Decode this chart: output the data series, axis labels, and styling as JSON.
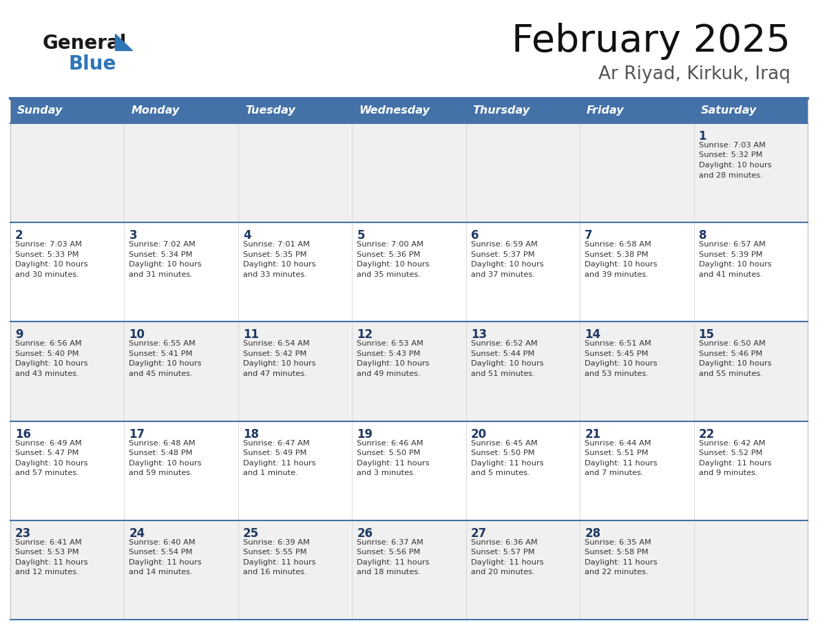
{
  "title": "February 2025",
  "subtitle": "Ar Riyad, Kirkuk, Iraq",
  "days_of_week": [
    "Sunday",
    "Monday",
    "Tuesday",
    "Wednesday",
    "Thursday",
    "Friday",
    "Saturday"
  ],
  "header_bg": "#4472A8",
  "header_text": "#FFFFFF",
  "row_bg_odd": "#F0F0F0",
  "row_bg_even": "#FFFFFF",
  "day_number_color": "#1F3864",
  "info_text_color": "#333333",
  "border_color": "#4472A8",
  "thin_line_color": "#4472A8",
  "calendar_data": [
    [
      null,
      null,
      null,
      null,
      null,
      null,
      {
        "day": "1",
        "sunrise": "7:03 AM",
        "sunset": "5:32 PM",
        "daylight_line1": "10 hours",
        "daylight_line2": "and 28 minutes."
      }
    ],
    [
      {
        "day": "2",
        "sunrise": "7:03 AM",
        "sunset": "5:33 PM",
        "daylight_line1": "10 hours",
        "daylight_line2": "and 30 minutes."
      },
      {
        "day": "3",
        "sunrise": "7:02 AM",
        "sunset": "5:34 PM",
        "daylight_line1": "10 hours",
        "daylight_line2": "and 31 minutes."
      },
      {
        "day": "4",
        "sunrise": "7:01 AM",
        "sunset": "5:35 PM",
        "daylight_line1": "10 hours",
        "daylight_line2": "and 33 minutes."
      },
      {
        "day": "5",
        "sunrise": "7:00 AM",
        "sunset": "5:36 PM",
        "daylight_line1": "10 hours",
        "daylight_line2": "and 35 minutes."
      },
      {
        "day": "6",
        "sunrise": "6:59 AM",
        "sunset": "5:37 PM",
        "daylight_line1": "10 hours",
        "daylight_line2": "and 37 minutes."
      },
      {
        "day": "7",
        "sunrise": "6:58 AM",
        "sunset": "5:38 PM",
        "daylight_line1": "10 hours",
        "daylight_line2": "and 39 minutes."
      },
      {
        "day": "8",
        "sunrise": "6:57 AM",
        "sunset": "5:39 PM",
        "daylight_line1": "10 hours",
        "daylight_line2": "and 41 minutes."
      }
    ],
    [
      {
        "day": "9",
        "sunrise": "6:56 AM",
        "sunset": "5:40 PM",
        "daylight_line1": "10 hours",
        "daylight_line2": "and 43 minutes."
      },
      {
        "day": "10",
        "sunrise": "6:55 AM",
        "sunset": "5:41 PM",
        "daylight_line1": "10 hours",
        "daylight_line2": "and 45 minutes."
      },
      {
        "day": "11",
        "sunrise": "6:54 AM",
        "sunset": "5:42 PM",
        "daylight_line1": "10 hours",
        "daylight_line2": "and 47 minutes."
      },
      {
        "day": "12",
        "sunrise": "6:53 AM",
        "sunset": "5:43 PM",
        "daylight_line1": "10 hours",
        "daylight_line2": "and 49 minutes."
      },
      {
        "day": "13",
        "sunrise": "6:52 AM",
        "sunset": "5:44 PM",
        "daylight_line1": "10 hours",
        "daylight_line2": "and 51 minutes."
      },
      {
        "day": "14",
        "sunrise": "6:51 AM",
        "sunset": "5:45 PM",
        "daylight_line1": "10 hours",
        "daylight_line2": "and 53 minutes."
      },
      {
        "day": "15",
        "sunrise": "6:50 AM",
        "sunset": "5:46 PM",
        "daylight_line1": "10 hours",
        "daylight_line2": "and 55 minutes."
      }
    ],
    [
      {
        "day": "16",
        "sunrise": "6:49 AM",
        "sunset": "5:47 PM",
        "daylight_line1": "10 hours",
        "daylight_line2": "and 57 minutes."
      },
      {
        "day": "17",
        "sunrise": "6:48 AM",
        "sunset": "5:48 PM",
        "daylight_line1": "10 hours",
        "daylight_line2": "and 59 minutes."
      },
      {
        "day": "18",
        "sunrise": "6:47 AM",
        "sunset": "5:49 PM",
        "daylight_line1": "11 hours",
        "daylight_line2": "and 1 minute."
      },
      {
        "day": "19",
        "sunrise": "6:46 AM",
        "sunset": "5:50 PM",
        "daylight_line1": "11 hours",
        "daylight_line2": "and 3 minutes."
      },
      {
        "day": "20",
        "sunrise": "6:45 AM",
        "sunset": "5:50 PM",
        "daylight_line1": "11 hours",
        "daylight_line2": "and 5 minutes."
      },
      {
        "day": "21",
        "sunrise": "6:44 AM",
        "sunset": "5:51 PM",
        "daylight_line1": "11 hours",
        "daylight_line2": "and 7 minutes."
      },
      {
        "day": "22",
        "sunrise": "6:42 AM",
        "sunset": "5:52 PM",
        "daylight_line1": "11 hours",
        "daylight_line2": "and 9 minutes."
      }
    ],
    [
      {
        "day": "23",
        "sunrise": "6:41 AM",
        "sunset": "5:53 PM",
        "daylight_line1": "11 hours",
        "daylight_line2": "and 12 minutes."
      },
      {
        "day": "24",
        "sunrise": "6:40 AM",
        "sunset": "5:54 PM",
        "daylight_line1": "11 hours",
        "daylight_line2": "and 14 minutes."
      },
      {
        "day": "25",
        "sunrise": "6:39 AM",
        "sunset": "5:55 PM",
        "daylight_line1": "11 hours",
        "daylight_line2": "and 16 minutes."
      },
      {
        "day": "26",
        "sunrise": "6:37 AM",
        "sunset": "5:56 PM",
        "daylight_line1": "11 hours",
        "daylight_line2": "and 18 minutes."
      },
      {
        "day": "27",
        "sunrise": "6:36 AM",
        "sunset": "5:57 PM",
        "daylight_line1": "11 hours",
        "daylight_line2": "and 20 minutes."
      },
      {
        "day": "28",
        "sunrise": "6:35 AM",
        "sunset": "5:58 PM",
        "daylight_line1": "11 hours",
        "daylight_line2": "and 22 minutes."
      },
      null
    ]
  ],
  "figsize": [
    11.88,
    9.18
  ],
  "dpi": 100
}
